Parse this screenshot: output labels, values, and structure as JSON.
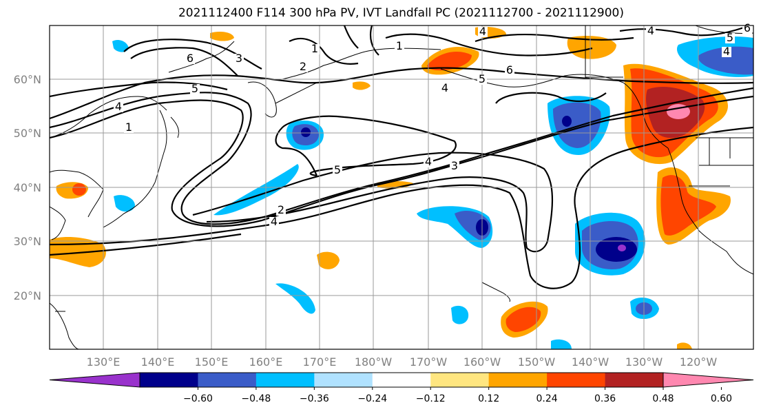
{
  "title": "2021112400 F114 300 hPa PV, IVT Landfall PC (2021112700 - 2021112900)",
  "lat_labels": [
    "60°N",
    "50°N",
    "40°N",
    "30°N",
    "20°N"
  ],
  "lon_labels": [
    "130°E",
    "140°E",
    "150°E",
    "160°E",
    "170°E",
    "180°W",
    "170°W",
    "160°W",
    "150°W",
    "140°W",
    "130°W",
    "120°W"
  ],
  "contour_labels": [
    "6",
    "3",
    "1",
    "2",
    "5",
    "4",
    "4",
    "1",
    "4",
    "5",
    "4",
    "6",
    "4",
    "5",
    "6",
    "4",
    "5",
    "4",
    "3",
    "2",
    "1"
  ],
  "colorbar": {
    "ticks": [
      "−0.60",
      "−0.48",
      "−0.36",
      "−0.24",
      "−0.12",
      "0.12",
      "0.24",
      "0.36",
      "0.48",
      "0.60"
    ],
    "colors": [
      "#9932CC",
      "#00008B",
      "#3A5CC8",
      "#00BFFF",
      "#B0E2FF",
      "#FFFFFF",
      "#FFE680",
      "#FFA500",
      "#FF4500",
      "#B22222",
      "#FF88B0"
    ]
  }
}
